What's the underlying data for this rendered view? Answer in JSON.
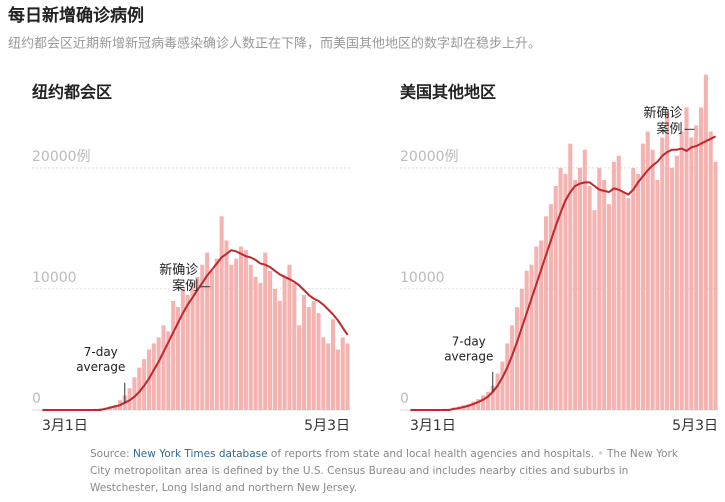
{
  "header": {
    "title": "每日新增确诊病例",
    "subtitle": "纽约都会区近期新增新冠病毒感染确诊人数正在下降，而美国其他地区的数字却在稳步上升。"
  },
  "chart_data": [
    {
      "type": "bar",
      "title": "纽约都会区",
      "categories": [
        "3月1日",
        null,
        null,
        null,
        null,
        null,
        null,
        null,
        null,
        null,
        null,
        null,
        null,
        null,
        null,
        null,
        null,
        null,
        null,
        null,
        null,
        null,
        null,
        null,
        null,
        null,
        null,
        null,
        null,
        null,
        null,
        null,
        null,
        null,
        null,
        null,
        null,
        null,
        null,
        null,
        null,
        null,
        null,
        null,
        null,
        null,
        null,
        null,
        null,
        null,
        null,
        null,
        null,
        null,
        null,
        null,
        null,
        null,
        null,
        null,
        null,
        null,
        null,
        "5月3日"
      ],
      "series": [
        {
          "name": [
            "新确诊",
            "案例"
          ],
          "color": "#f4b2b0",
          "values": [
            0,
            0,
            0,
            0,
            0,
            0,
            0,
            0,
            0,
            0,
            50,
            100,
            150,
            200,
            300,
            400,
            800,
            1200,
            1800,
            2700,
            3500,
            4200,
            5000,
            5500,
            6000,
            7000,
            6500,
            9000,
            8500,
            10000,
            9500,
            10500,
            11000,
            12000,
            13000,
            11500,
            12500,
            16000,
            14000,
            12000,
            12500,
            13500,
            13200,
            12000,
            11000,
            10500,
            13000,
            11500,
            10000,
            9000,
            11000,
            12000,
            10500,
            7000,
            9500,
            8500,
            9000,
            8000,
            6000,
            5500,
            7500,
            5000,
            6000,
            5500
          ]
        },
        {
          "name": [
            "7-day",
            "average"
          ],
          "color": "#c0282d",
          "values": [
            0,
            0,
            0,
            0,
            0,
            0,
            0,
            0,
            0,
            0,
            0,
            0,
            0,
            100,
            200,
            300,
            400,
            600,
            800,
            1100,
            1500,
            2000,
            2600,
            3300,
            4000,
            4800,
            5600,
            6400,
            7200,
            8000,
            8700,
            9300,
            9900,
            10500,
            11100,
            11600,
            12100,
            12600,
            12900,
            13200,
            13100,
            12900,
            12700,
            12600,
            12400,
            12100,
            12000,
            11800,
            11500,
            11200,
            11000,
            10800,
            10600,
            10300,
            9900,
            9500,
            9200,
            9000,
            8700,
            8300,
            7900,
            7400,
            6800,
            6200
          ]
        }
      ],
      "ylim": [
        0,
        28000
      ],
      "yticks": [
        0,
        10000,
        {
          "value": 20000,
          "label": "20000例"
        }
      ],
      "grid": true
    },
    {
      "type": "bar",
      "title": "美国其他地区",
      "categories": [
        "3月1日",
        null,
        null,
        null,
        null,
        null,
        null,
        null,
        null,
        null,
        null,
        null,
        null,
        null,
        null,
        null,
        null,
        null,
        null,
        null,
        null,
        null,
        null,
        null,
        null,
        null,
        null,
        null,
        null,
        null,
        null,
        null,
        null,
        null,
        null,
        null,
        null,
        null,
        null,
        null,
        null,
        null,
        null,
        null,
        null,
        null,
        null,
        null,
        null,
        null,
        null,
        null,
        null,
        null,
        null,
        null,
        null,
        null,
        null,
        null,
        null,
        null,
        null,
        "5月3日"
      ],
      "series": [
        {
          "name": [
            "新确诊",
            "案例"
          ],
          "color": "#f4b2b0",
          "values": [
            0,
            0,
            0,
            0,
            0,
            0,
            0,
            100,
            100,
            200,
            300,
            400,
            500,
            700,
            900,
            1200,
            1500,
            2000,
            3000,
            4000,
            5500,
            7000,
            8500,
            10000,
            11500,
            12000,
            13500,
            14000,
            16000,
            17000,
            18500,
            20000,
            19500,
            22000,
            19000,
            20000,
            21500,
            18500,
            16500,
            20000,
            19000,
            17000,
            20500,
            21000,
            18000,
            17500,
            20000,
            19500,
            22000,
            23000,
            21500,
            19000,
            22500,
            24500,
            20000,
            21000,
            23000,
            25000,
            22500,
            23500,
            25000,
            27700,
            23000,
            20500
          ]
        },
        {
          "name": [
            "7-day",
            "average"
          ],
          "color": "#c0282d",
          "values": [
            0,
            0,
            0,
            0,
            0,
            0,
            0,
            0,
            0,
            100,
            150,
            250,
            350,
            500,
            650,
            850,
            1100,
            1500,
            2000,
            2700,
            3500,
            4500,
            5600,
            6800,
            8000,
            9200,
            10400,
            11600,
            12800,
            14000,
            15200,
            16300,
            17300,
            18000,
            18500,
            18700,
            18800,
            18800,
            18500,
            18200,
            18100,
            18000,
            18300,
            18200,
            18000,
            17800,
            18200,
            18800,
            19300,
            19800,
            20200,
            20500,
            21000,
            21300,
            21500,
            21500,
            21600,
            21400,
            21700,
            21800,
            22000,
            22200,
            22400,
            22600
          ]
        }
      ],
      "ylim": [
        0,
        28000
      ],
      "yticks": [
        0,
        10000,
        {
          "value": 20000,
          "label": "20000例"
        }
      ],
      "grid": true
    }
  ],
  "footer": {
    "source_label": "Source:",
    "source_link": "New York Times database",
    "source_text": "of reports from state and local health agencies and hospitals.",
    "note": "The New York City metropolitan area is defined by the U.S. Census Bureau and includes nearby cities and suburbs in Westchester, Long Island and northern New Jersey."
  }
}
